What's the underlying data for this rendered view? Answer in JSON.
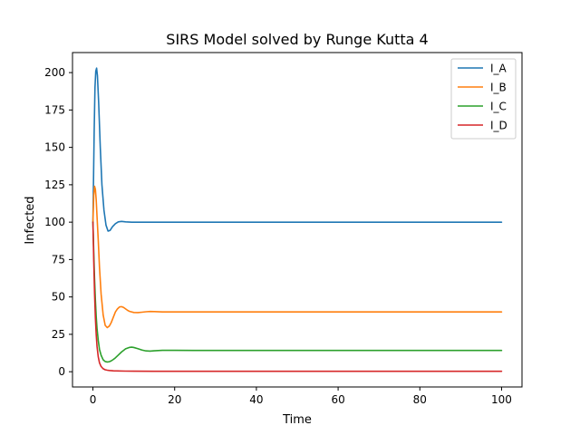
{
  "chart_data": {
    "type": "line",
    "title": "SIRS Model solved by Runge Kutta 4",
    "xlabel": "Time",
    "ylabel": "Infected",
    "xlim": [
      -5,
      105
    ],
    "ylim": [
      -10.2,
      213.4
    ],
    "xticks": [
      0,
      20,
      40,
      60,
      80,
      100
    ],
    "yticks": [
      0,
      25,
      50,
      75,
      100,
      125,
      150,
      175,
      200
    ],
    "grid": false,
    "legend_position": "top-right",
    "series": [
      {
        "name": "I_A",
        "color": "#1f77b4",
        "x": [
          0,
          0.3,
          0.5,
          0.7,
          0.9,
          1.1,
          1.4,
          1.8,
          2.2,
          2.7,
          3.2,
          3.7,
          4.2,
          4.8,
          5.5,
          6.2,
          7,
          8,
          9.5,
          11,
          13,
          15,
          20,
          30,
          40,
          50,
          60,
          70,
          80,
          90,
          100
        ],
        "y": [
          100,
          160,
          190,
          201,
          203,
          198,
          180,
          150,
          125,
          108,
          98,
          94,
          94.5,
          97,
          99,
          100.2,
          100.5,
          100.2,
          100,
          100,
          100,
          100,
          100,
          100,
          100,
          100,
          100,
          100,
          100,
          100,
          100
        ]
      },
      {
        "name": "I_B",
        "color": "#ff7f0e",
        "x": [
          0,
          0.2,
          0.4,
          0.6,
          0.8,
          1.0,
          1.3,
          1.6,
          2.0,
          2.5,
          3.0,
          3.5,
          4.0,
          4.5,
          5.0,
          5.5,
          6.0,
          6.5,
          7.0,
          7.5,
          8.0,
          8.5,
          9.0,
          10,
          11,
          12,
          13,
          14,
          15,
          17,
          20,
          30,
          40,
          50,
          60,
          70,
          80,
          90,
          100
        ],
        "y": [
          100,
          118,
          124,
          122,
          115,
          104,
          88,
          70,
          52,
          38,
          31,
          29.5,
          30.5,
          33,
          36.5,
          40,
          42,
          43.3,
          43.5,
          43,
          42,
          41,
          40.3,
          39.6,
          39.5,
          39.8,
          40.1,
          40.3,
          40.2,
          40,
          40,
          40,
          40,
          40,
          40,
          40,
          40,
          40,
          40
        ]
      },
      {
        "name": "I_C",
        "color": "#2ca02c",
        "x": [
          0,
          0.2,
          0.4,
          0.6,
          0.8,
          1.0,
          1.3,
          1.6,
          2.0,
          2.5,
          3.0,
          3.5,
          4.0,
          4.5,
          5.0,
          5.5,
          6.0,
          7.0,
          8.0,
          9.0,
          9.5,
          10,
          11,
          12,
          13,
          14,
          15,
          17,
          20,
          25,
          30,
          40,
          50,
          60,
          70,
          80,
          90,
          100
        ],
        "y": [
          100,
          80,
          62,
          48,
          37,
          29,
          21,
          15,
          11,
          8,
          6.8,
          6.5,
          6.7,
          7.3,
          8.2,
          9.3,
          10.6,
          13.2,
          15.3,
          16.3,
          16.4,
          16.2,
          15.4,
          14.5,
          13.9,
          13.8,
          14.0,
          14.3,
          14.3,
          14.2,
          14.2,
          14.2,
          14.2,
          14.2,
          14.2,
          14.2,
          14.2,
          14.2
        ]
      },
      {
        "name": "I_D",
        "color": "#d62728",
        "x": [
          0,
          0.2,
          0.4,
          0.6,
          0.8,
          1.0,
          1.3,
          1.6,
          2.0,
          2.5,
          3.0,
          3.5,
          4.0,
          5.0,
          6.0,
          8.0,
          10,
          15,
          20,
          30,
          40,
          50,
          60,
          70,
          80,
          90,
          100
        ],
        "y": [
          100,
          74,
          52,
          36,
          25,
          17,
          10,
          6,
          3.5,
          2,
          1.3,
          1,
          0.8,
          0.6,
          0.5,
          0.4,
          0.35,
          0.3,
          0.3,
          0.3,
          0.3,
          0.3,
          0.3,
          0.3,
          0.3,
          0.3,
          0.3
        ]
      }
    ]
  }
}
